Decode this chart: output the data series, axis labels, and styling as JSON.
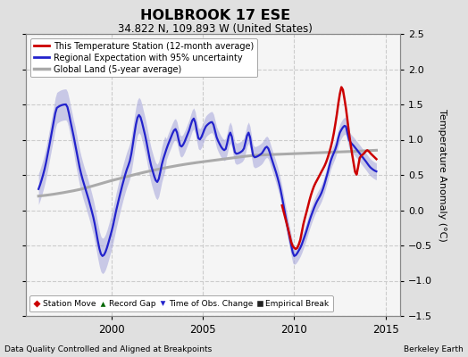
{
  "title": "HOLBROOK 17 ESE",
  "subtitle": "34.822 N, 109.893 W (United States)",
  "ylabel": "Temperature Anomaly (°C)",
  "xlabel_left": "Data Quality Controlled and Aligned at Breakpoints",
  "xlabel_right": "Berkeley Earth",
  "ylim": [
    -1.5,
    2.5
  ],
  "xlim_start": 1995.3,
  "xlim_end": 2015.8,
  "xticks": [
    2000,
    2005,
    2010,
    2015
  ],
  "yticks": [
    -1.5,
    -1.0,
    -0.5,
    0.0,
    0.5,
    1.0,
    1.5,
    2.0,
    2.5
  ],
  "background_color": "#e0e0e0",
  "plot_bg_color": "#f5f5f5",
  "grid_color": "#cccccc",
  "regional_color": "#2222cc",
  "regional_fill_color": "#aaaadd",
  "station_color": "#cc0000",
  "global_color": "#aaaaaa",
  "legend_box_color": "#ffffff"
}
